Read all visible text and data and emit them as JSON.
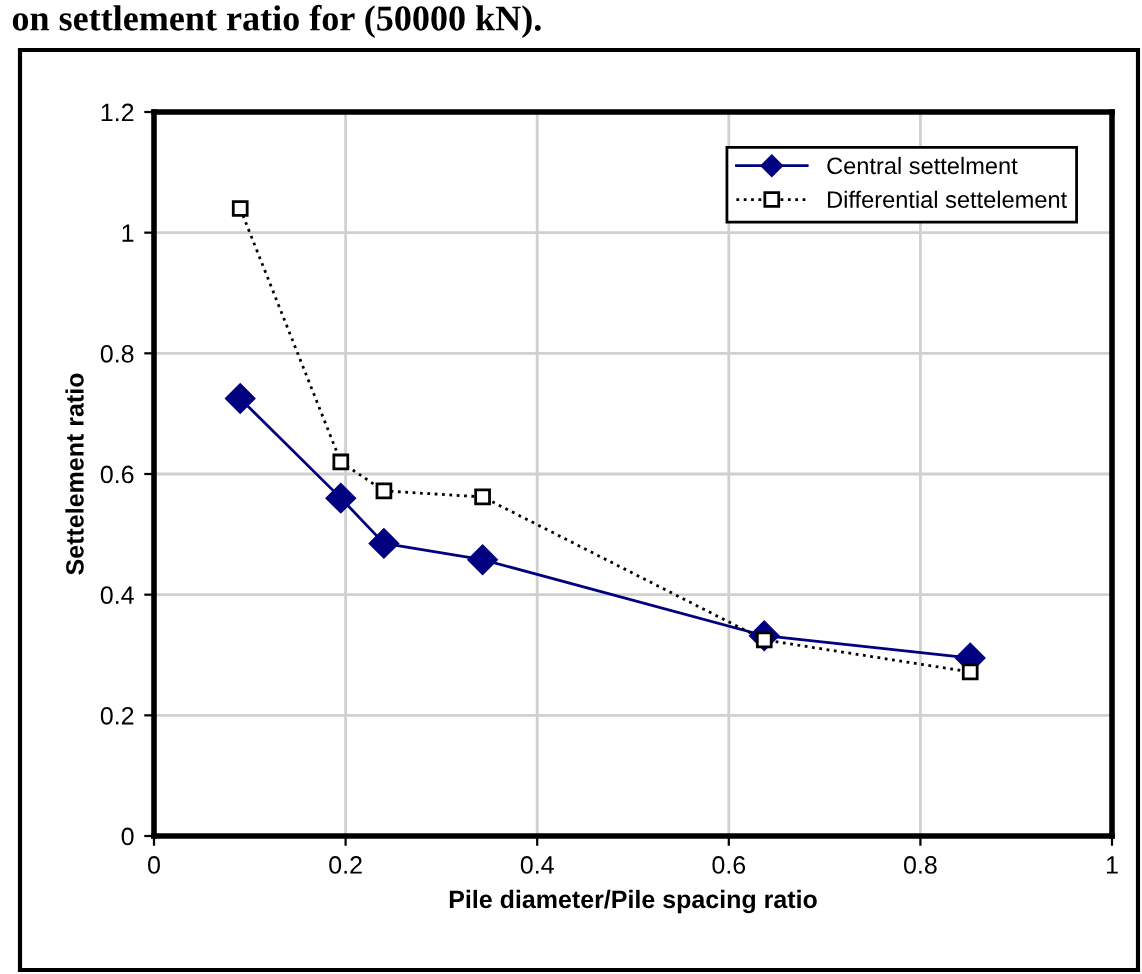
{
  "chart_data": {
    "type": "line",
    "annotations": [
      "on settlement ratio for (50000 kN)."
    ],
    "xlabel": "Pile diameter/Pile spacing ratio",
    "ylabel": "Settelement ratio",
    "x": [
      0.09,
      0.195,
      0.24,
      0.343,
      0.637,
      0.852
    ],
    "series": [
      {
        "name": "Central settelment",
        "color": "#000080",
        "marker": "diamond",
        "line_style": "solid",
        "values": [
          0.725,
          0.56,
          0.485,
          0.458,
          0.332,
          0.295
        ]
      },
      {
        "name": "Differential settelement",
        "color": "#000000",
        "marker": "square",
        "line_style": "dotted",
        "values": [
          1.04,
          0.62,
          0.572,
          0.562,
          0.325,
          0.272
        ]
      }
    ],
    "xlim": [
      0,
      1
    ],
    "ylim": [
      0,
      1.2
    ],
    "xticks": [
      0,
      0.2,
      0.4,
      0.6,
      0.8,
      1
    ],
    "yticks": [
      0,
      0.2,
      0.4,
      0.6,
      0.8,
      1,
      1.2
    ],
    "grid": true,
    "legend": "top right"
  }
}
